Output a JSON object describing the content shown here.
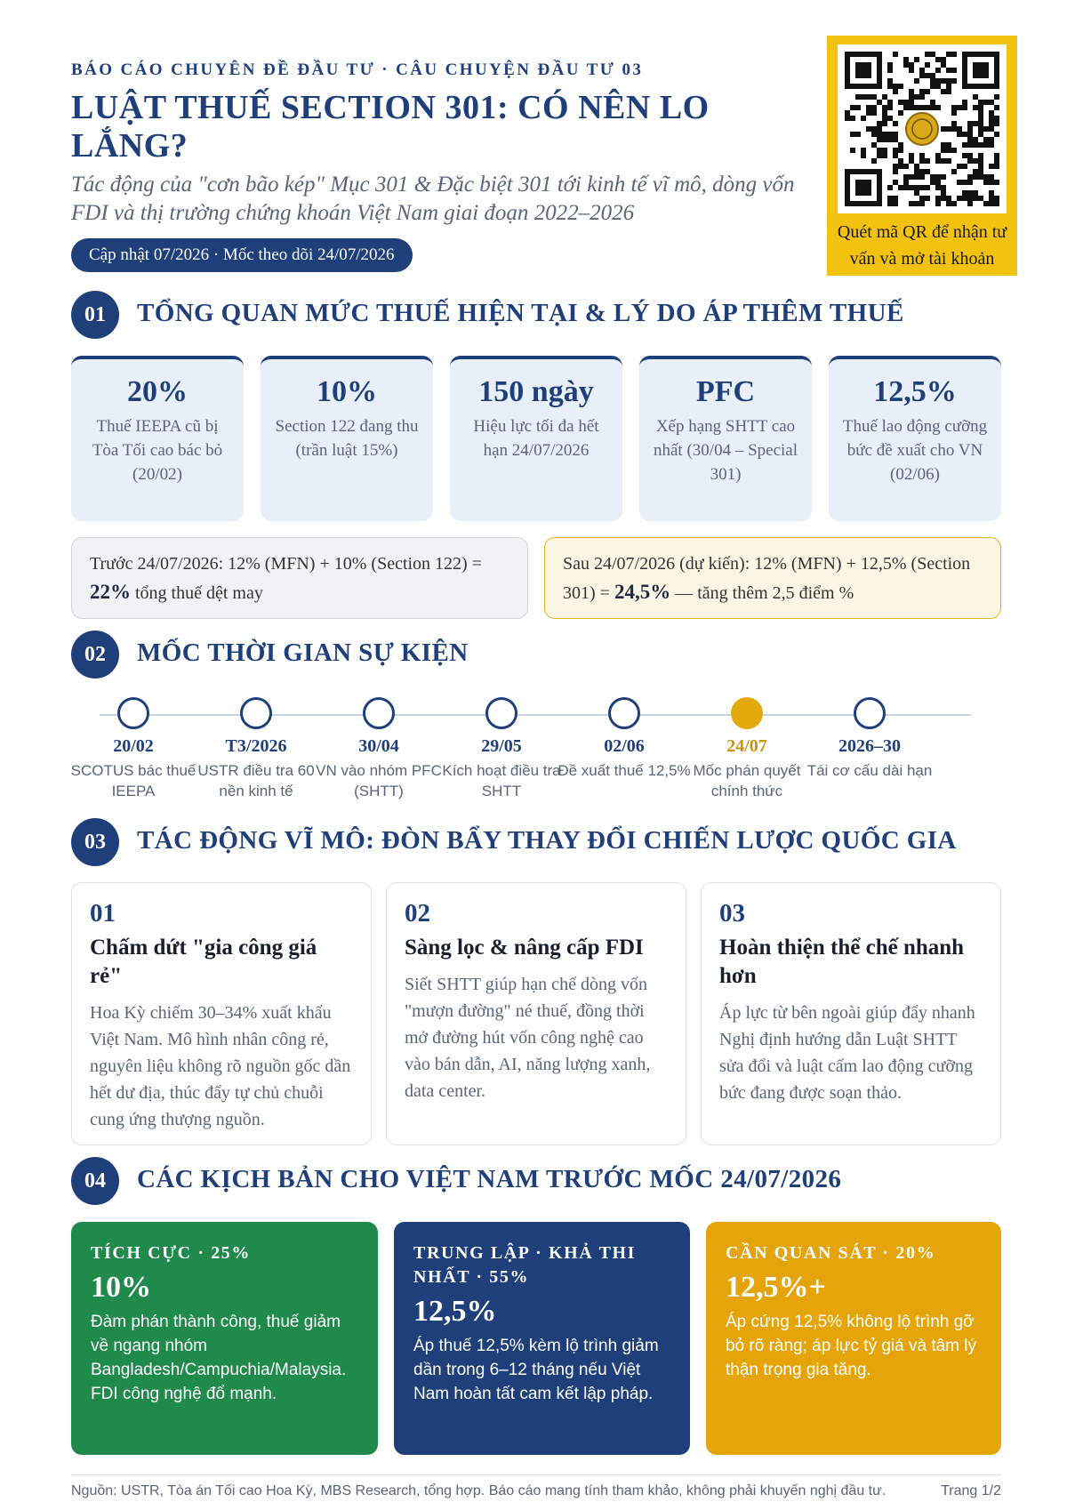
{
  "header": {
    "kicker": "BÁO CÁO CHUYÊN ĐỀ ĐẦU TƯ · CÂU CHUYỆN ĐẦU TƯ 03",
    "title": "LUẬT THUẾ SECTION 301: CÓ NÊN LO LẮNG?",
    "subtitle": "Tác động của \"cơn bão kép\" Mục 301 & Đặc biệt 301 tới kinh tế vĩ mô, dòng vốn FDI và thị trường chứng khoán Việt Nam giai đoạn 2022–2026",
    "update_pill": "Cập nhật 07/2026 · Mốc theo dõi 24/07/2026"
  },
  "qr": {
    "caption": "Quét mã QR để nhận tư vấn và mở tài khoản",
    "icon": "qr-code-icon"
  },
  "sections": [
    {
      "number": "01",
      "title": "TỔNG QUAN MỨC THUẾ HIỆN TẠI & LÝ DO ÁP THÊM THUẾ"
    },
    {
      "number": "02",
      "title": "MỐC THỜI GIAN SỰ KIỆN"
    },
    {
      "number": "03",
      "title": "TÁC ĐỘNG VĨ MÔ: ĐÒN BẨY THAY ĐỔI CHIẾN LƯỢC QUỐC GIA"
    },
    {
      "number": "04",
      "title": "CÁC KỊCH BẢN CHO VIỆT NAM TRƯỚC MỐC 24/07/2026"
    }
  ],
  "stats": [
    {
      "value": "20%",
      "desc": "Thuế IEEPA cũ bị Tòa Tối cao bác bỏ (20/02)"
    },
    {
      "value": "10%",
      "desc": "Section 122 đang thu (trần luật 15%)"
    },
    {
      "value": "150 ngày",
      "desc": "Hiệu lực tối đa hết hạn 24/07/2026"
    },
    {
      "value": "PFC",
      "desc": "Xếp hạng SHTT cao nhất (30/04 – Special 301)"
    },
    {
      "value": "12,5%",
      "desc": "Thuế lao động cưỡng bức đề xuất cho VN (02/06)"
    }
  ],
  "compare": {
    "before_text": "Trước 24/07/2026: 12% (MFN) + 10% (Section 122) =",
    "before_value": "22%",
    "before_tail": "tổng thuế dệt may",
    "after_text": "Sau 24/07/2026 (dự kiến): 12% (MFN) + 12,5% (Section 301) =",
    "after_value": "24,5%",
    "after_tail": "— tăng thêm 2,5 điểm %"
  },
  "timeline": [
    {
      "date": "20/02",
      "desc": "SCOTUS bác thuế IEEPA",
      "active": false
    },
    {
      "date": "T3/2026",
      "desc": "USTR điều tra 60 nền kinh tế",
      "active": false
    },
    {
      "date": "30/04",
      "desc": "VN vào nhóm PFC (SHTT)",
      "active": false
    },
    {
      "date": "29/05",
      "desc": "Kích hoạt điều tra SHTT",
      "active": false
    },
    {
      "date": "02/06",
      "desc": "Đề xuất thuế 12,5%",
      "active": false
    },
    {
      "date": "24/07",
      "desc": "Mốc phán quyết chính thức",
      "active": true
    },
    {
      "date": "2026–30",
      "desc": "Tái cơ cấu dài hạn",
      "active": false
    }
  ],
  "impacts": [
    {
      "num": "01",
      "head": "Chấm dứt \"gia công giá rẻ\"",
      "body": "Hoa Kỳ chiếm 30–34% xuất khẩu Việt Nam. Mô hình nhân công rẻ, nguyên liệu không rõ nguồn gốc dần hết dư địa, thúc đẩy tự chủ chuỗi cung ứng thượng nguồn."
    },
    {
      "num": "02",
      "head": "Sàng lọc & nâng cấp FDI",
      "body": "Siết SHTT giúp hạn chế dòng vốn \"mượn đường\" né thuế, đồng thời mở đường hút vốn công nghệ cao vào bán dẫn, AI, năng lượng xanh, data center."
    },
    {
      "num": "03",
      "head": "Hoàn thiện thể chế nhanh hơn",
      "body": "Áp lực từ bên ngoài giúp đẩy nhanh Nghị định hướng dẫn Luật SHTT sửa đổi và luật cấm lao động cưỡng bức đang được soạn thảo."
    }
  ],
  "scenarios": [
    {
      "label": "TÍCH CỰC · 25%",
      "value": "10%",
      "body": "Đàm phán thành công, thuế giảm về ngang nhóm Bangladesh/Campuchia/Malaysia. FDI công nghệ đổ mạnh.",
      "color": "#1f8a4c"
    },
    {
      "label": "TRUNG LẬP · KHẢ THI NHẤT · 55%",
      "value": "12,5%",
      "body": "Áp thuế 12,5% kèm lộ trình giảm dần trong 6–12 tháng nếu Việt Nam hoàn tất cam kết lập pháp.",
      "color": "#1f3f7a"
    },
    {
      "label": "CẦN QUAN SÁT · 20%",
      "value": "12,5%+",
      "body": "Áp cứng 12,5% không lộ trình gỡ bỏ rõ ràng; áp lực tỷ giá và tâm lý thận trọng gia tăng.",
      "color": "#e5a50a"
    }
  ],
  "footer": {
    "source": "Nguồn: USTR, Tòa án Tối cao Hoa Kỳ, MBS Research, tổng hợp. Báo cáo mang tính tham khảo, không phải khuyến nghị đầu tư.",
    "page": "Trang 1/2"
  }
}
